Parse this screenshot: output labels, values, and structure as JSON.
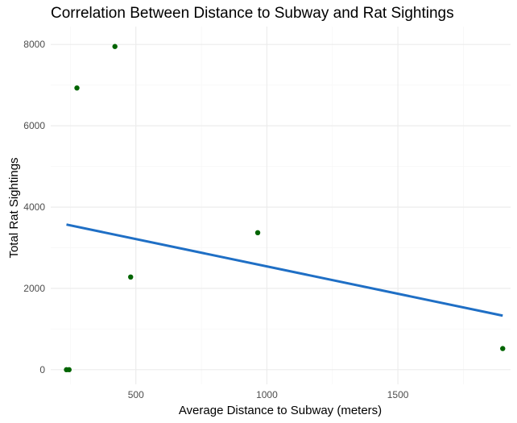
{
  "chart_data": {
    "type": "scatter",
    "title": "Correlation Between Distance to Subway and Rat Sightings",
    "xlabel": "Average Distance to Subway (meters)",
    "ylabel": "Total Rat Sightings",
    "xlim": [
      175,
      1930
    ],
    "ylim": [
      -360,
      8440
    ],
    "x_ticks": [
      500,
      1000,
      1500
    ],
    "y_ticks": [
      0,
      2000,
      4000,
      6000,
      8000
    ],
    "grid": true,
    "legend": "none",
    "series": [
      {
        "points": [
          {
            "x": 235,
            "y": 0
          },
          {
            "x": 245,
            "y": 0
          },
          {
            "x": 275,
            "y": 6930
          },
          {
            "x": 420,
            "y": 7950
          },
          {
            "x": 480,
            "y": 2280
          },
          {
            "x": 965,
            "y": 3370
          },
          {
            "x": 1900,
            "y": 520
          }
        ]
      }
    ],
    "trend_line": {
      "x": [
        235,
        1900
      ],
      "y": [
        3570,
        1330
      ]
    },
    "colors": {
      "points": "#006400",
      "trend_line": "#1f6fc5",
      "grid_major": "#ebebeb",
      "grid_minor": "#f5f5f5"
    }
  }
}
